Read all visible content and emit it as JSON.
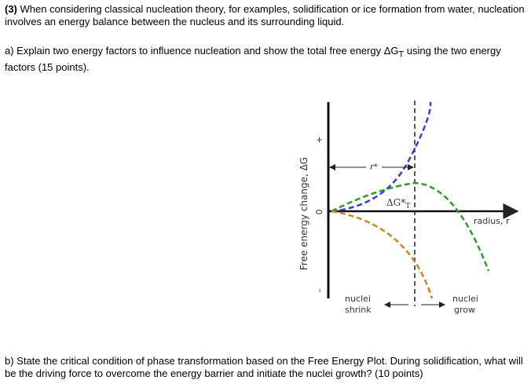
{
  "question": {
    "label": "(3)",
    "intro": "When considering classical nucleation theory, for examples, solidification or ice formation from water, nucleation involves an energy balance between the nucleus and its surrounding liquid.",
    "part_a_start": "a) Explain two energy factors to influence nucleation and show the total free energy ΔG",
    "part_a_sub": "T",
    "part_a_end": " using the two energy factors (15 points).",
    "part_b": "b) State the critical condition of phase transformation based on the Free Energy Plot. During solidification, what will be the driving force to overcome the energy barrier and initiate the nuclei growth? (10 points)"
  },
  "diagram": {
    "y_axis_label": "Free energy change, ΔG",
    "plus": "+",
    "zero": "0",
    "minus": "–",
    "critical_radius": "r*",
    "barrier": "ΔG*",
    "barrier_sub": "T",
    "x_axis_label": "radius, r",
    "shrink_1": "nuclei",
    "shrink_2": "shrink",
    "grow_1": "nuclei",
    "grow_2": "grow"
  }
}
